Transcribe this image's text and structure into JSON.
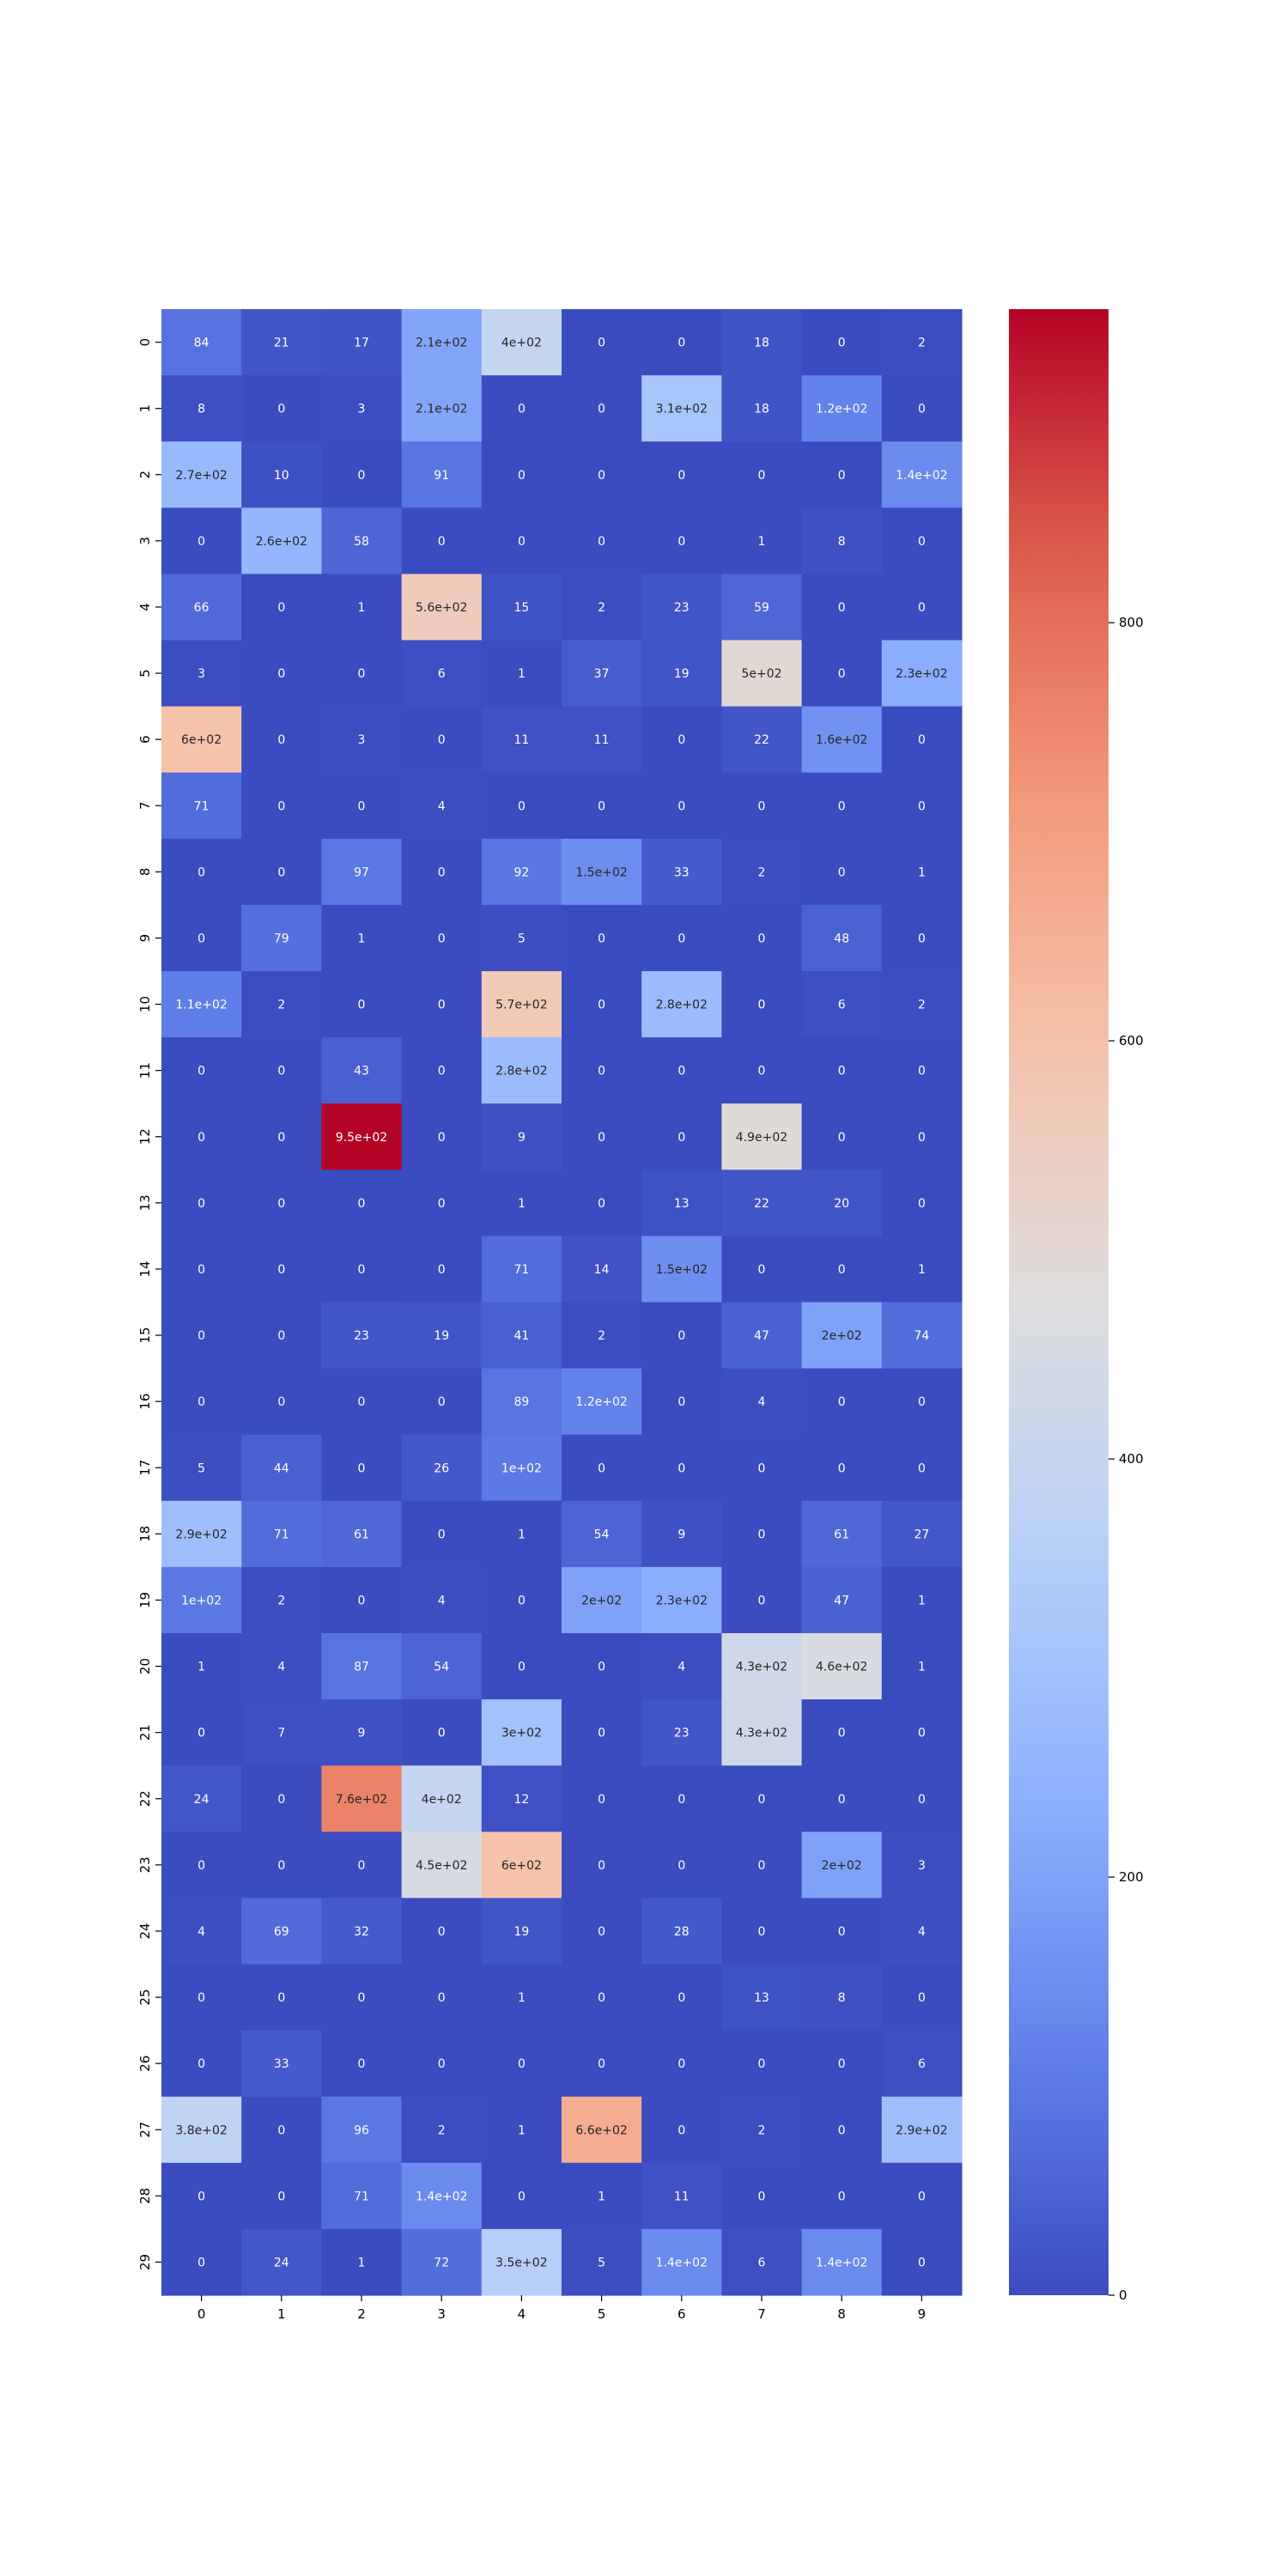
{
  "chart_data": {
    "type": "heatmap",
    "title": "",
    "xlabel": "",
    "ylabel": "",
    "colormap": "coolwarm",
    "x_ticks": [
      "0",
      "1",
      "2",
      "3",
      "4",
      "5",
      "6",
      "7",
      "8",
      "9"
    ],
    "y_ticks": [
      "0",
      "1",
      "2",
      "3",
      "4",
      "5",
      "6",
      "7",
      "8",
      "9",
      "10",
      "11",
      "12",
      "13",
      "14",
      "15",
      "16",
      "17",
      "18",
      "19",
      "20",
      "21",
      "22",
      "23",
      "24",
      "25",
      "26",
      "27",
      "28",
      "29"
    ],
    "values": [
      [
        84,
        21,
        17,
        210,
        400,
        0,
        0,
        18,
        0,
        2
      ],
      [
        8,
        0,
        3,
        210,
        0,
        0,
        310,
        18,
        120,
        0
      ],
      [
        270,
        10,
        0,
        91,
        0,
        0,
        0,
        0,
        0,
        140
      ],
      [
        0,
        260,
        58,
        0,
        0,
        0,
        0,
        1,
        8,
        0
      ],
      [
        66,
        0,
        1,
        560,
        15,
        2,
        23,
        59,
        0,
        0
      ],
      [
        3,
        0,
        0,
        6,
        1,
        37,
        19,
        500,
        0,
        230
      ],
      [
        600,
        0,
        3,
        0,
        11,
        11,
        0,
        22,
        160,
        0
      ],
      [
        71,
        0,
        0,
        4,
        0,
        0,
        0,
        0,
        0,
        0
      ],
      [
        0,
        0,
        97,
        0,
        92,
        150,
        33,
        2,
        0,
        1
      ],
      [
        0,
        79,
        1,
        0,
        5,
        0,
        0,
        0,
        48,
        0
      ],
      [
        110,
        2,
        0,
        0,
        570,
        0,
        280,
        0,
        6,
        2
      ],
      [
        0,
        0,
        43,
        0,
        280,
        0,
        0,
        0,
        0,
        0
      ],
      [
        0,
        0,
        950,
        0,
        9,
        0,
        0,
        490,
        0,
        0
      ],
      [
        0,
        0,
        0,
        0,
        1,
        0,
        13,
        22,
        20,
        0
      ],
      [
        0,
        0,
        0,
        0,
        71,
        14,
        150,
        0,
        0,
        1
      ],
      [
        0,
        0,
        23,
        19,
        41,
        2,
        0,
        47,
        200,
        74
      ],
      [
        0,
        0,
        0,
        0,
        89,
        120,
        0,
        4,
        0,
        0
      ],
      [
        5,
        44,
        0,
        26,
        100,
        0,
        0,
        0,
        0,
        0
      ],
      [
        290,
        71,
        61,
        0,
        1,
        54,
        9,
        0,
        61,
        27
      ],
      [
        100,
        2,
        0,
        4,
        0,
        200,
        230,
        0,
        47,
        1
      ],
      [
        1,
        4,
        87,
        54,
        0,
        0,
        4,
        430,
        460,
        1
      ],
      [
        0,
        7,
        9,
        0,
        300,
        0,
        23,
        430,
        0,
        0
      ],
      [
        24,
        0,
        760,
        400,
        12,
        0,
        0,
        0,
        0,
        0
      ],
      [
        0,
        0,
        0,
        450,
        600,
        0,
        0,
        0,
        200,
        3
      ],
      [
        4,
        69,
        32,
        0,
        19,
        0,
        28,
        0,
        0,
        4
      ],
      [
        0,
        0,
        0,
        0,
        1,
        0,
        0,
        13,
        8,
        0
      ],
      [
        0,
        33,
        0,
        0,
        0,
        0,
        0,
        0,
        0,
        6
      ],
      [
        380,
        0,
        96,
        2,
        1,
        660,
        0,
        2,
        0,
        290
      ],
      [
        0,
        0,
        71,
        140,
        0,
        1,
        11,
        0,
        0,
        0
      ],
      [
        0,
        24,
        1,
        72,
        350,
        5,
        140,
        6,
        140,
        0
      ]
    ],
    "labels": [
      [
        "84",
        "21",
        "17",
        "2.1e+02",
        "4e+02",
        "0",
        "0",
        "18",
        "0",
        "2"
      ],
      [
        "8",
        "0",
        "3",
        "2.1e+02",
        "0",
        "0",
        "3.1e+02",
        "18",
        "1.2e+02",
        "0"
      ],
      [
        "2.7e+02",
        "10",
        "0",
        "91",
        "0",
        "0",
        "0",
        "0",
        "0",
        "1.4e+02"
      ],
      [
        "0",
        "2.6e+02",
        "58",
        "0",
        "0",
        "0",
        "0",
        "1",
        "8",
        "0"
      ],
      [
        "66",
        "0",
        "1",
        "5.6e+02",
        "15",
        "2",
        "23",
        "59",
        "0",
        "0"
      ],
      [
        "3",
        "0",
        "0",
        "6",
        "1",
        "37",
        "19",
        "5e+02",
        "0",
        "2.3e+02"
      ],
      [
        "6e+02",
        "0",
        "3",
        "0",
        "11",
        "11",
        "0",
        "22",
        "1.6e+02",
        "0"
      ],
      [
        "71",
        "0",
        "0",
        "4",
        "0",
        "0",
        "0",
        "0",
        "0",
        "0"
      ],
      [
        "0",
        "0",
        "97",
        "0",
        "92",
        "1.5e+02",
        "33",
        "2",
        "0",
        "1"
      ],
      [
        "0",
        "79",
        "1",
        "0",
        "5",
        "0",
        "0",
        "0",
        "48",
        "0"
      ],
      [
        "1.1e+02",
        "2",
        "0",
        "0",
        "5.7e+02",
        "0",
        "2.8e+02",
        "0",
        "6",
        "2"
      ],
      [
        "0",
        "0",
        "43",
        "0",
        "2.8e+02",
        "0",
        "0",
        "0",
        "0",
        "0"
      ],
      [
        "0",
        "0",
        "9.5e+02",
        "0",
        "9",
        "0",
        "0",
        "4.9e+02",
        "0",
        "0"
      ],
      [
        "0",
        "0",
        "0",
        "0",
        "1",
        "0",
        "13",
        "22",
        "20",
        "0"
      ],
      [
        "0",
        "0",
        "0",
        "0",
        "71",
        "14",
        "1.5e+02",
        "0",
        "0",
        "1"
      ],
      [
        "0",
        "0",
        "23",
        "19",
        "41",
        "2",
        "0",
        "47",
        "2e+02",
        "74"
      ],
      [
        "0",
        "0",
        "0",
        "0",
        "89",
        "1.2e+02",
        "0",
        "4",
        "0",
        "0"
      ],
      [
        "5",
        "44",
        "0",
        "26",
        "1e+02",
        "0",
        "0",
        "0",
        "0",
        "0"
      ],
      [
        "2.9e+02",
        "71",
        "61",
        "0",
        "1",
        "54",
        "9",
        "0",
        "61",
        "27"
      ],
      [
        "1e+02",
        "2",
        "0",
        "4",
        "0",
        "2e+02",
        "2.3e+02",
        "0",
        "47",
        "1"
      ],
      [
        "1",
        "4",
        "87",
        "54",
        "0",
        "0",
        "4",
        "4.3e+02",
        "4.6e+02",
        "1"
      ],
      [
        "0",
        "7",
        "9",
        "0",
        "3e+02",
        "0",
        "23",
        "4.3e+02",
        "0",
        "0"
      ],
      [
        "24",
        "0",
        "7.6e+02",
        "4e+02",
        "12",
        "0",
        "0",
        "0",
        "0",
        "0"
      ],
      [
        "0",
        "0",
        "0",
        "4.5e+02",
        "6e+02",
        "0",
        "0",
        "0",
        "2e+02",
        "3"
      ],
      [
        "4",
        "69",
        "32",
        "0",
        "19",
        "0",
        "28",
        "0",
        "0",
        "4"
      ],
      [
        "0",
        "0",
        "0",
        "0",
        "1",
        "0",
        "0",
        "13",
        "8",
        "0"
      ],
      [
        "0",
        "33",
        "0",
        "0",
        "0",
        "0",
        "0",
        "0",
        "0",
        "6"
      ],
      [
        "3.8e+02",
        "0",
        "96",
        "2",
        "1",
        "6.6e+02",
        "0",
        "2",
        "0",
        "2.9e+02"
      ],
      [
        "0",
        "0",
        "71",
        "1.4e+02",
        "0",
        "1",
        "11",
        "0",
        "0",
        "0"
      ],
      [
        "0",
        "24",
        "1",
        "72",
        "3.5e+02",
        "5",
        "1.4e+02",
        "6",
        "1.4e+02",
        "0"
      ]
    ],
    "colorbar": {
      "min": 0,
      "max": 950,
      "ticks": [
        0,
        200,
        400,
        600,
        800
      ],
      "tick_labels": [
        "0",
        "200",
        "400",
        "600",
        "800"
      ]
    }
  }
}
